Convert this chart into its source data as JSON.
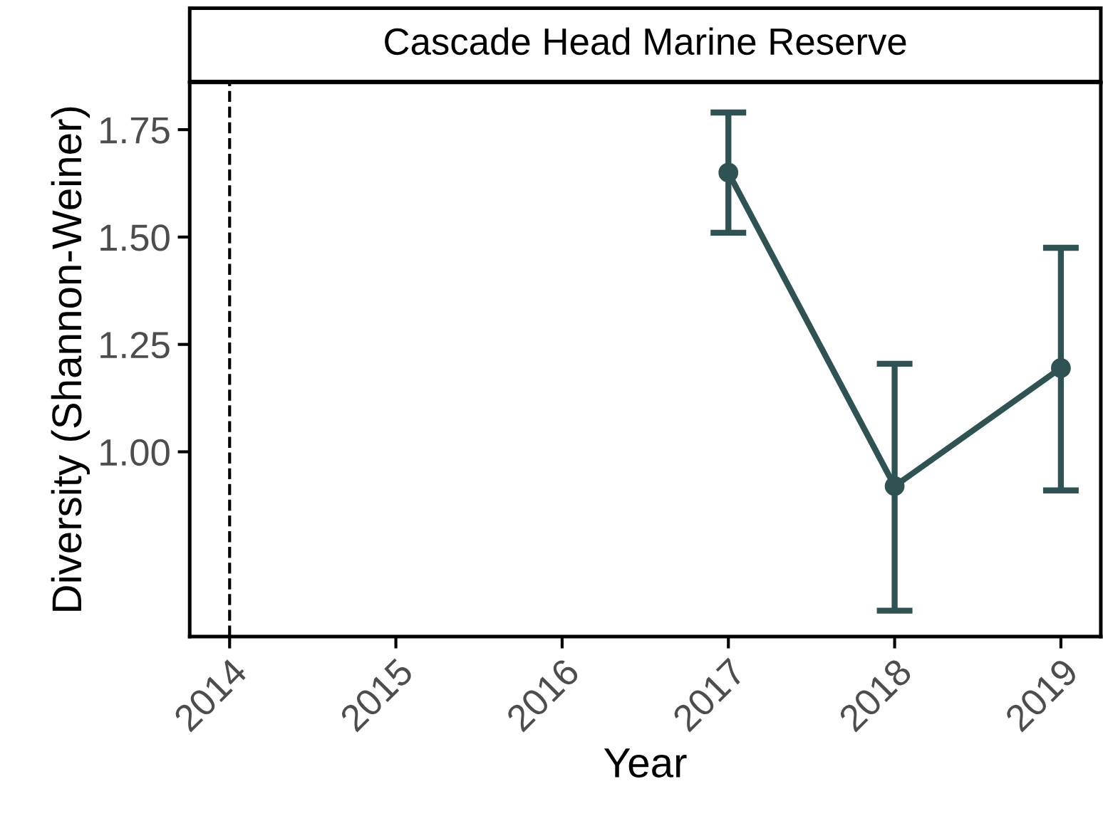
{
  "chart_data": {
    "type": "line",
    "title": "Cascade Head Marine Reserve",
    "xlabel": "Year",
    "ylabel": "Diversity (Shannon-Weiner)",
    "x": [
      2017,
      2018,
      2019
    ],
    "series": [
      {
        "color": "#2f5252",
        "values": [
          1.65,
          0.92,
          1.195
        ],
        "errors": [
          [
            1.51,
            1.79
          ],
          [
            0.63,
            1.205
          ],
          [
            0.91,
            1.475
          ]
        ]
      }
    ],
    "marker": "circle",
    "line_style": "solid",
    "xlim": [
      2013.76,
      2019.24
    ],
    "xticks": [
      2014,
      2015,
      2016,
      2017,
      2018,
      2019
    ],
    "ylim": [
      0.57,
      1.86
    ],
    "yticks": [
      {
        "value": 1.0,
        "label": "1.00"
      },
      {
        "value": 1.25,
        "label": "1.25"
      },
      {
        "value": 1.5,
        "label": "1.50"
      },
      {
        "value": 1.75,
        "label": "1.75"
      }
    ],
    "ref_lines": [
      {
        "axis": "x",
        "value": 2014,
        "color": "#000000",
        "line_style": "dashed"
      }
    ],
    "grid": false,
    "legend": false
  }
}
